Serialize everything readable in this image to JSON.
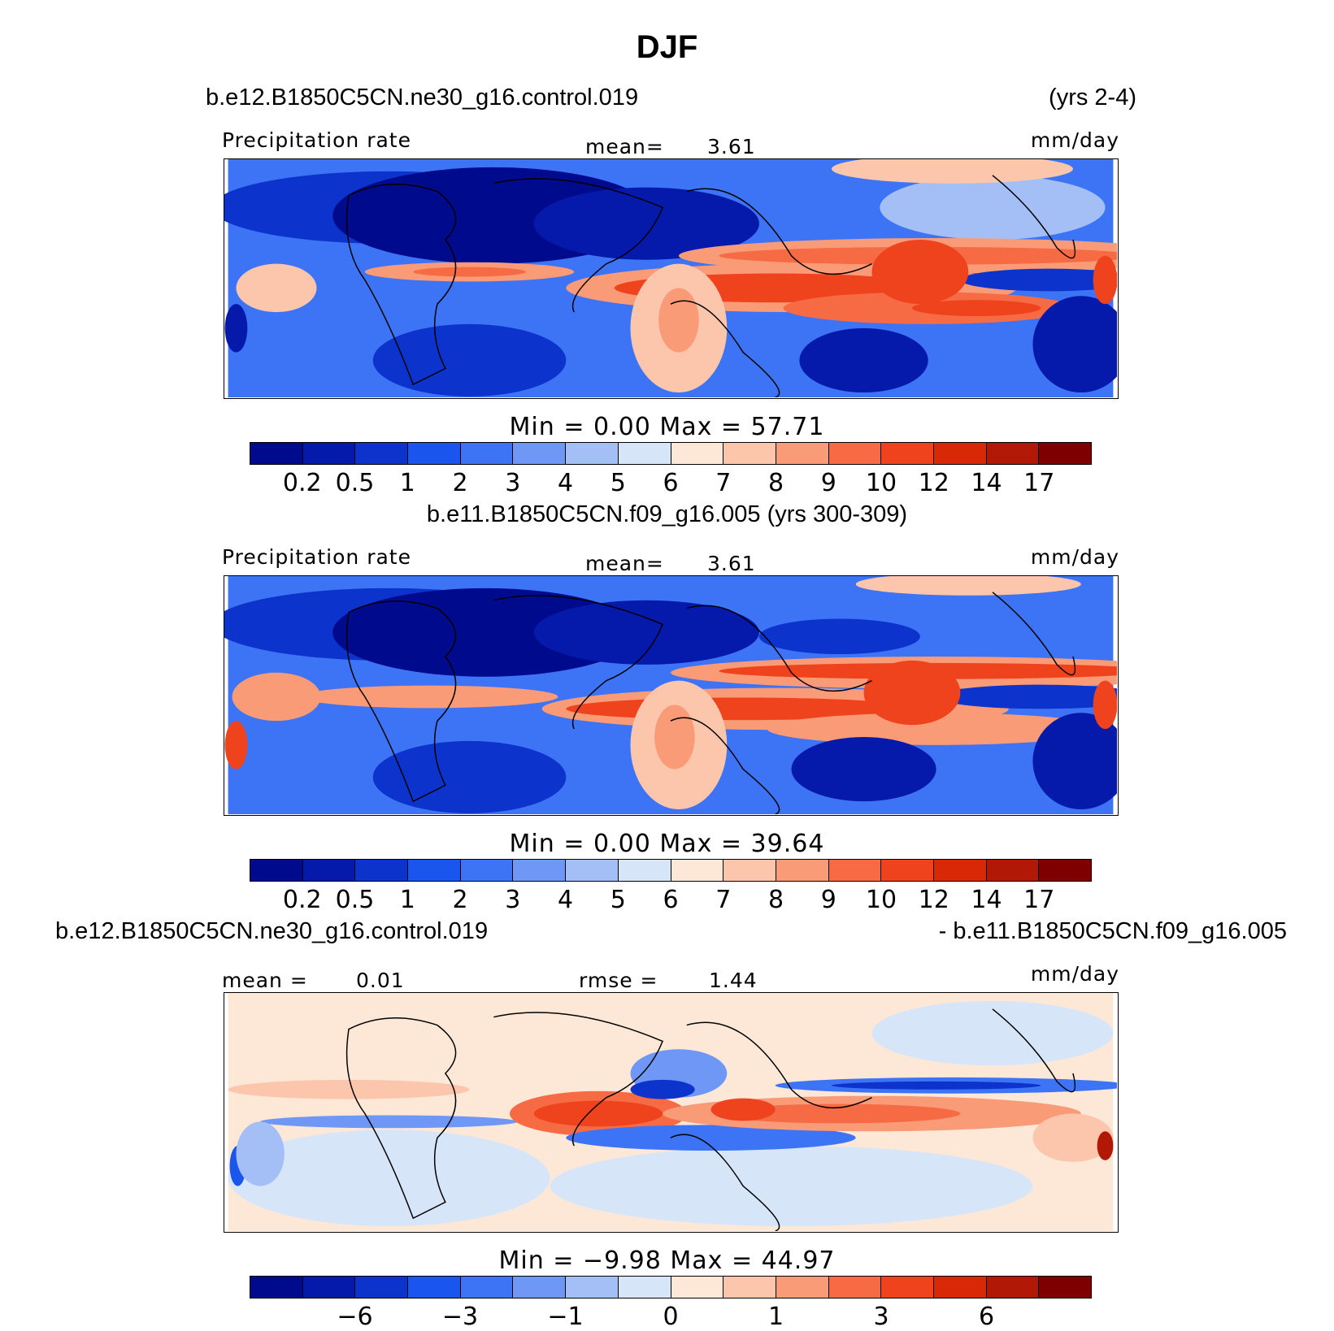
{
  "chart_data": [
    {
      "type": "heatmap",
      "title": "DJF",
      "case": "b.e12.B1850C5CN.ne30_g16.control.019",
      "years": "(yrs 2-4)",
      "variable": "Precipitation rate",
      "units": "mm/day",
      "mean_label": "mean=",
      "mean_value": "3.61",
      "min_max": "Min =     0.00  Max =    57.71",
      "levels": [
        "0.2",
        "0.5",
        "1",
        "2",
        "3",
        "4",
        "5",
        "6",
        "7",
        "8",
        "9",
        "10",
        "12",
        "14",
        "17"
      ]
    },
    {
      "type": "heatmap",
      "case": "b.e11.B1850C5CN.f09_g16.005 (yrs 300-309)",
      "variable": "Precipitation rate",
      "units": "mm/day",
      "mean_label": "mean=",
      "mean_value": "3.61",
      "min_max": "Min =     0.00  Max =    39.64",
      "levels": [
        "0.2",
        "0.5",
        "1",
        "2",
        "3",
        "4",
        "5",
        "6",
        "7",
        "8",
        "9",
        "10",
        "12",
        "14",
        "17"
      ]
    },
    {
      "type": "heatmap",
      "case_left": "b.e12.B1850C5CN.ne30_g16.control.019",
      "case_right": "- b.e11.B1850C5CN.f09_g16.005",
      "units": "mm/day",
      "mean_label": "mean =",
      "mean_value": "0.01",
      "rmse_label": "rmse =",
      "rmse_value": "1.44",
      "min_max": "Min =   −9.98  Max =    44.97",
      "tick_labels": [
        "−6",
        "−3",
        "−1",
        "0",
        "1",
        "3",
        "6"
      ]
    }
  ],
  "colors": [
    "#000a8c",
    "#0519aa",
    "#0c33cc",
    "#1a55ee",
    "#3d74f5",
    "#6f97f5",
    "#a4bff5",
    "#d6e6f8",
    "#fde8d8",
    "#fcc6ad",
    "#fa9b78",
    "#f66b44",
    "#ef431e",
    "#d82806",
    "#b11805",
    "#7f0000"
  ]
}
